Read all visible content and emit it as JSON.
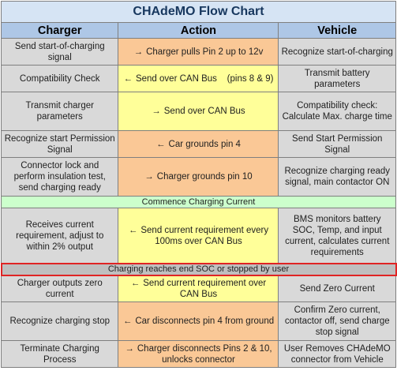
{
  "title": "CHAdeMO Flow Chart",
  "headers": {
    "charger": "Charger",
    "action": "Action",
    "vehicle": "Vehicle"
  },
  "rows": [
    {
      "charger": "Send start-of-charging signal",
      "action": "Charger pulls Pin 2 up to 12v",
      "arrow": "→",
      "action_color": "orange",
      "vehicle": "Recognize start-of-charging"
    },
    {
      "charger": "Compatibility Check",
      "action": "Send over CAN Bus    (pins 8 & 9)",
      "arrow": "←",
      "action_color": "yellow",
      "vehicle": "Transmit battery parameters"
    },
    {
      "charger": "Transmit charger parameters",
      "action": "Send over CAN Bus",
      "arrow": "→",
      "action_color": "yellow",
      "vehicle": "Compatibility check: Calculate Max. charge time"
    },
    {
      "charger": "Recognize start Permission Signal",
      "action": "Car grounds pin 4",
      "arrow": "←",
      "action_color": "orange",
      "vehicle": "Send Start Permission Signal"
    },
    {
      "charger": "Connector lock and perform insulation test, send charging ready",
      "action": "Charger grounds pin 10",
      "arrow": "→",
      "action_color": "orange",
      "vehicle": "Recognize charging ready signal, main contactor ON"
    }
  ],
  "band1": "Commence Charging Current",
  "rows2": [
    {
      "charger": "Receives current requirement, adjust to within 2% output",
      "action": "Send current requirement every 100ms over CAN Bus",
      "arrow": "←",
      "action_color": "yellow",
      "vehicle": "BMS monitors battery SOC, Temp, and input current, calculates current requirements"
    }
  ],
  "band2": "Charging reaches end SOC or stopped by user",
  "rows3": [
    {
      "charger": "Charger outputs zero current",
      "action": "Send current requirement over CAN Bus",
      "arrow": "←",
      "action_color": "yellow",
      "vehicle": "Send Zero Current"
    },
    {
      "charger": "Recognize charging stop",
      "action": "Car disconnects pin 4 from ground",
      "arrow": "←",
      "action_color": "orange",
      "vehicle": "Confirm Zero current, contactor off, send charge stop signal"
    },
    {
      "charger": "Terminate Charging Process",
      "action": "Charger disconnects Pins 2 & 10, unlocks connector",
      "arrow": "→",
      "action_color": "orange",
      "vehicle": "User Removes CHAdeMO connector from Vehicle"
    }
  ],
  "colors": {
    "title_bg": "#d6e4f4",
    "header_bg": "#aec7e6",
    "side_bg": "#d9d9d9",
    "orange": "#fac896",
    "yellow": "#ffff99",
    "green_band": "#ccffcc",
    "red_band_border": "#e02424"
  }
}
